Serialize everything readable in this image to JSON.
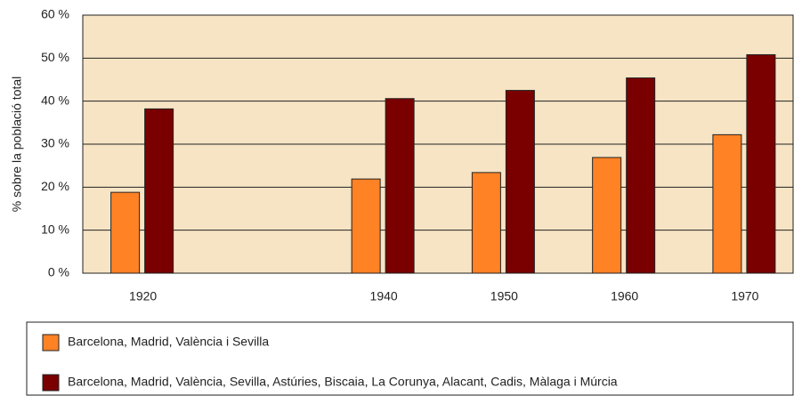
{
  "chart_data": {
    "type": "bar",
    "ylabel": "% sobre la població total",
    "x": [
      1920,
      1940,
      1950,
      1960,
      1970
    ],
    "xlim": [
      1915,
      1974
    ],
    "xticks": [
      1920,
      1940,
      1950,
      1960,
      1970
    ],
    "ylim": [
      0,
      60
    ],
    "yticks": [
      {
        "value": 0,
        "label": "0 %"
      },
      {
        "value": 10,
        "label": "10 %"
      },
      {
        "value": 20,
        "label": "20 %"
      },
      {
        "value": 30,
        "label": "30 %"
      },
      {
        "value": 40,
        "label": "40 %"
      },
      {
        "value": 50,
        "label": "50 %"
      },
      {
        "value": 60,
        "label": "60 %"
      }
    ],
    "grid": true,
    "series": [
      {
        "name": "Barcelona, Madrid, València i Sevilla",
        "color": "#ff8224",
        "values": [
          18.8,
          21.9,
          23.4,
          26.9,
          32.2
        ]
      },
      {
        "name": "Barcelona, Madrid, València, Sevilla, Astúries, Biscaia, La Corunya, Alacant, Cadis, Màlaga i Múrcia",
        "color": "#7a0000",
        "values": [
          38.2,
          40.6,
          42.5,
          45.4,
          50.8
        ]
      }
    ]
  }
}
